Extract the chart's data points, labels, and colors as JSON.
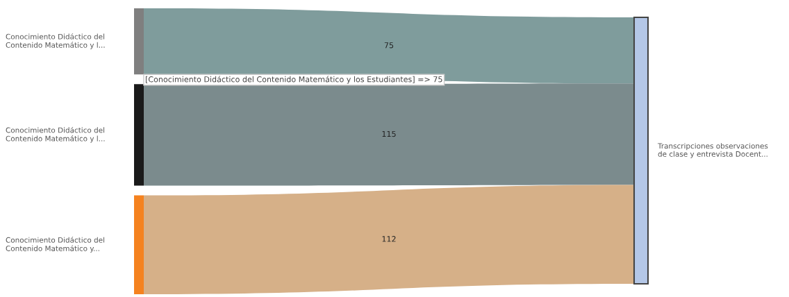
{
  "chart_data": {
    "type": "other",
    "categories": [
      "Conocimiento Didáctico del\nContenido Matemático y l...",
      "Conocimiento Didáctico del\nContenido Matemático y l...",
      "Conocimiento Didáctico del\nContenido Matemático y..."
    ],
    "colors": [
      "#7f7f7f",
      "#1a1a1a",
      "#f5821f"
    ],
    "series": [
      {
        "name": "Transcripciones observaciones\nde clase y entrevista Docent...",
        "color": "#b4c7e7",
        "colors": [
          "#7f9c9c",
          "#7b8b8d",
          "#d6b088"
        ],
        "values": [
          75,
          115,
          112
        ]
      }
    ],
    "data_labels": true,
    "annotations": [
      "[Conocimiento Didáctico del Contenido Matemático y los Estudiantes] => 75"
    ]
  }
}
